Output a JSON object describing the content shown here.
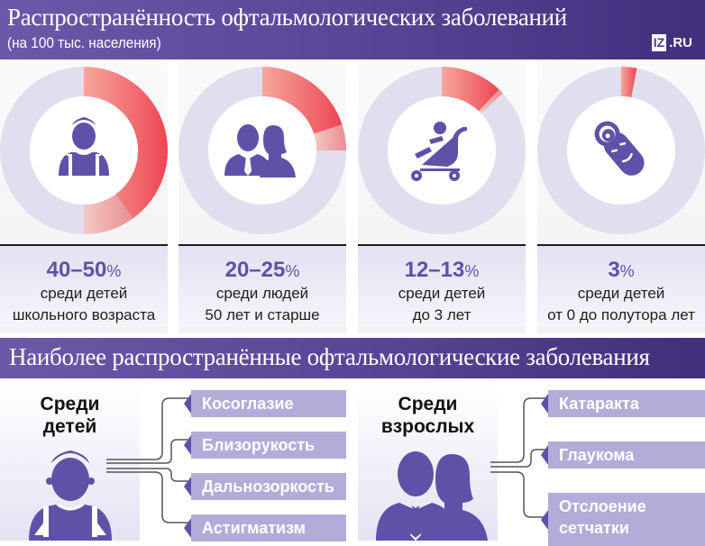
{
  "header": {
    "title": "Распространённость офтальмологических заболеваний",
    "subtitle": "(на 100 тыс. населения)",
    "logo": {
      "box": "IZ",
      "suffix": ".RU"
    }
  },
  "cards": [
    {
      "icon": "schoolchild-icon",
      "value": "40–50",
      "sign": "%",
      "line1": "среди детей",
      "line2": "школьного возраста"
    },
    {
      "icon": "adults-icon",
      "value": "20–25",
      "sign": "%",
      "line1": "среди людей",
      "line2": "50 лет и старше"
    },
    {
      "icon": "stroller-icon",
      "value": "12–13",
      "sign": "%",
      "line1": "среди детей",
      "line2": "до 3 лет"
    },
    {
      "icon": "swaddled-baby-icon",
      "value": "3",
      "sign": "%",
      "line1": "среди детей",
      "line2": "от 0 до полутора лет"
    }
  ],
  "band": {
    "title": "Наиболее распространённые офтальмологические заболевания"
  },
  "children": {
    "heading_line1": "Среди",
    "heading_line2": "детей",
    "diseases": [
      "Косоглазие",
      "Близорукость",
      "Дальнозоркость",
      "Астигматизм"
    ]
  },
  "adults": {
    "heading_line1": "Среди",
    "heading_line2": "взрослых",
    "diseases": [
      "Катаракта",
      "Глаукома",
      "Отслоение",
      "сетчатки"
    ]
  },
  "colors": {
    "header_purple": "#5a4698",
    "icon_purple": "#5d52a8",
    "ring_track": "#e1def0",
    "ring_red": "#ef4a55",
    "ring_light_red": "#f0a3a3",
    "tag_lavender": "#b3acd9"
  },
  "chart_data": {
    "type": "pie",
    "title": "Распространённость офтальмологических заболеваний",
    "subtitle": "(на 100 тыс. населения)",
    "categories": [
      "среди детей школьного возраста",
      "среди людей 50 лет и старше",
      "среди детей до 3 лет",
      "среди детей от 0 до полутора лет"
    ],
    "series": [
      {
        "name": "min %",
        "values": [
          40,
          20,
          12,
          3
        ]
      },
      {
        "name": "max %",
        "values": [
          50,
          25,
          13,
          3
        ]
      }
    ],
    "labels": [
      "40–50%",
      "20–25%",
      "12–13%",
      "3%"
    ],
    "style": "donut rings, arc starting at 12 o'clock clockwise; solid red to min, light red to max"
  }
}
